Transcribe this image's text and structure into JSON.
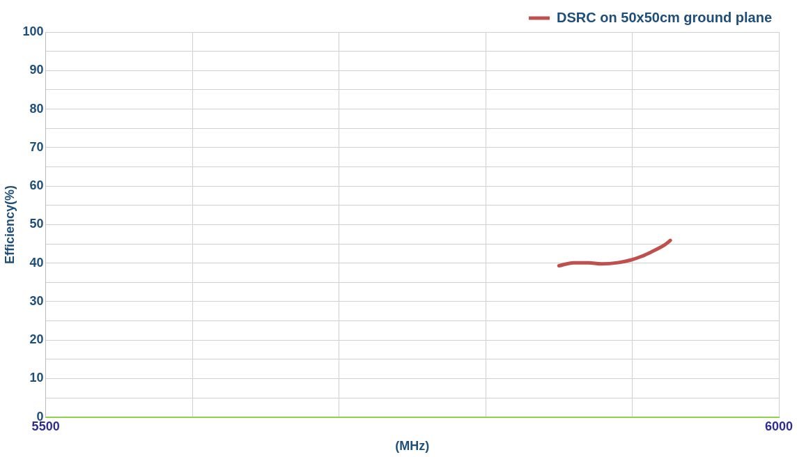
{
  "chart_data": {
    "type": "line",
    "xlabel": "(MHz)",
    "ylabel": "Efficiency(%)",
    "xlim": [
      5500,
      6000
    ],
    "xticks": [
      5500,
      {
        "value": 5600,
        "label": null
      },
      {
        "value": 5700,
        "label": null
      },
      {
        "value": 5800,
        "label": null
      },
      {
        "value": 5900,
        "label": null
      },
      6000
    ],
    "ylim": [
      0,
      100
    ],
    "yticks": [
      0,
      {
        "value": 5,
        "label": null
      },
      10,
      {
        "value": 15,
        "label": null
      },
      20,
      {
        "value": 25,
        "label": null
      },
      30,
      {
        "value": 35,
        "label": null
      },
      40,
      {
        "value": 45,
        "label": null
      },
      50,
      {
        "value": 55,
        "label": null
      },
      60,
      {
        "value": 65,
        "label": null
      },
      70,
      {
        "value": 75,
        "label": null
      },
      80,
      {
        "value": 85,
        "label": null
      },
      90,
      {
        "value": 95,
        "label": null
      },
      100
    ],
    "grid": true,
    "legend": "top right",
    "marker": "none",
    "line_style": "solid",
    "series": [
      {
        "name": "DSRC on 50x50cm ground plane",
        "color": "#c0504d",
        "x": [
          5850,
          5860,
          5870,
          5879,
          5890,
          5899,
          5906,
          5913,
          5922,
          5926
        ],
        "values": [
          39.3,
          40.1,
          40.1,
          39.8,
          40.1,
          40.8,
          41.7,
          42.9,
          44.7,
          45.9
        ]
      }
    ]
  }
}
